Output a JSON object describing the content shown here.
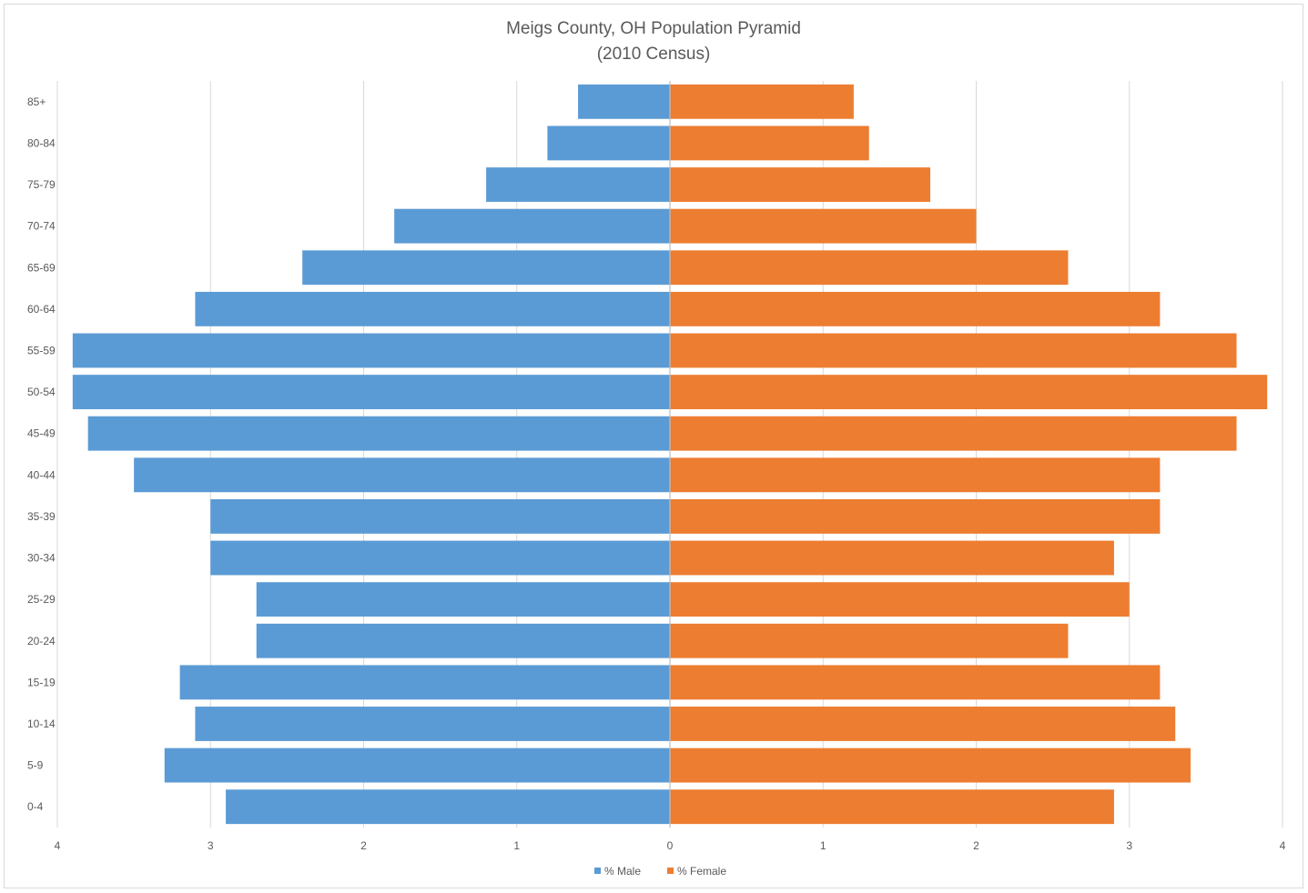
{
  "chart_data": {
    "type": "bar",
    "orientation": "horizontal",
    "title": "Meigs County, OH Population Pyramid",
    "subtitle": "(2010 Census)",
    "categories": [
      "0-4",
      "5-9",
      "10-14",
      "15-19",
      "20-24",
      "25-29",
      "30-34",
      "35-39",
      "40-44",
      "45-49",
      "50-54",
      "55-59",
      "60-64",
      "65-69",
      "70-74",
      "75-79",
      "80-84",
      "85+"
    ],
    "series": [
      {
        "name": "% Male",
        "color": "#5b9bd5",
        "direction": "left",
        "values": [
          2.9,
          3.3,
          3.1,
          3.2,
          2.7,
          2.7,
          3.0,
          3.0,
          3.5,
          3.8,
          3.9,
          3.9,
          3.1,
          2.4,
          1.8,
          1.2,
          0.8,
          0.6
        ]
      },
      {
        "name": "% Female",
        "color": "#ed7d31",
        "direction": "right",
        "values": [
          2.9,
          3.4,
          3.3,
          3.2,
          2.6,
          3.0,
          2.9,
          3.2,
          3.2,
          3.7,
          3.9,
          3.7,
          3.2,
          2.6,
          2.0,
          1.7,
          1.3,
          1.2
        ]
      }
    ],
    "x_ticks": [
      "4",
      "3",
      "2",
      "1",
      "0",
      "1",
      "2",
      "3",
      "4"
    ],
    "xlim": [
      -4,
      4
    ],
    "grid": "vertical",
    "legend_position": "bottom"
  }
}
